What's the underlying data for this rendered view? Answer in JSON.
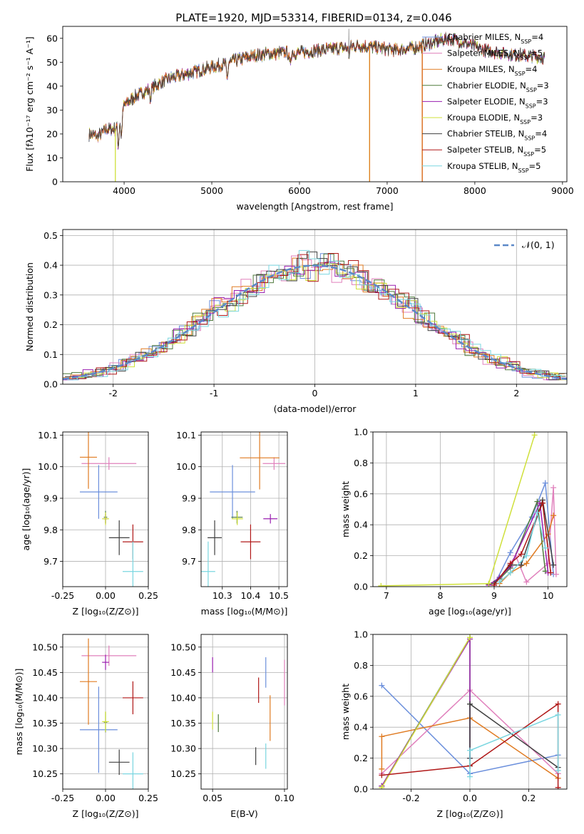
{
  "title": "PLATE=1920, MJD=53314, FIBERID=0134, z=0.046",
  "colors": {
    "Chabrier MILES": "#6b8fdc",
    "Salpeter MILES": "#e080bc",
    "Kroupa MILES": "#e07b22",
    "Chabrier ELODIE": "#4f7a3c",
    "Salpeter ELODIE": "#9a1fb0",
    "Kroupa ELODIE": "#cfe03a",
    "Chabrier STELIB": "#404040",
    "Salpeter STELIB": "#b01818",
    "Kroupa STELIB": "#7ad6e0"
  },
  "chart_data": [
    {
      "id": "spectrum",
      "type": "line",
      "xlabel": "wavelength [Angstrom, rest frame]",
      "ylabel": "Flux [fλ10⁻¹⁷ erg cm⁻² s⁻¹ A⁻¹]",
      "xlim": [
        3300,
        9050
      ],
      "ylim": [
        0,
        65
      ],
      "xticks": [
        4000,
        5000,
        6000,
        7000,
        8000,
        9000
      ],
      "yticks": [
        0,
        10,
        20,
        30,
        40,
        50,
        60
      ],
      "grid": false,
      "legend_position": "right",
      "legend": [
        {
          "key": "Chabrier MILES",
          "label": "Chabrier MILES, N_SSP=4"
        },
        {
          "key": "Salpeter MILES",
          "label": "Salpeter MILES, N_SSP=5"
        },
        {
          "key": "Kroupa MILES",
          "label": "Kroupa MILES, N_SSP=4"
        },
        {
          "key": "Chabrier ELODIE",
          "label": "Chabrier ELODIE, N_SSP=3"
        },
        {
          "key": "Salpeter ELODIE",
          "label": "Salpeter ELODIE, N_SSP=3"
        },
        {
          "key": "Kroupa ELODIE",
          "label": "Kroupa ELODIE, N_SSP=3"
        },
        {
          "key": "Chabrier STELIB",
          "label": "Chabrier STELIB, N_SSP=4"
        },
        {
          "key": "Salpeter STELIB",
          "label": "Salpeter STELIB, N_SSP=5"
        },
        {
          "key": "Kroupa STELIB",
          "label": "Kroupa STELIB, N_SSP=5"
        }
      ],
      "continuum": {
        "x": [
          3600,
          3700,
          3800,
          3900,
          4000,
          4100,
          4300,
          4500,
          4700,
          5000,
          5200,
          5500,
          5800,
          6000,
          6200,
          6500,
          6700,
          6900,
          7100,
          7300,
          7500,
          7700,
          7900,
          8100,
          8300,
          8500,
          8800
        ],
        "y": [
          20,
          19,
          22,
          22,
          32,
          35,
          39,
          43,
          45,
          48,
          50,
          53,
          54,
          54,
          55,
          56,
          57,
          56,
          55,
          56,
          58,
          60,
          58,
          55,
          54,
          53,
          52
        ]
      },
      "absorption_features": [
        {
          "x": 3934,
          "depth": 10
        },
        {
          "x": 3968,
          "depth": 10
        },
        {
          "x": 4300,
          "depth": 4
        },
        {
          "x": 5175,
          "depth": 7
        },
        {
          "x": 5890,
          "depth": 5
        },
        {
          "x": 6563,
          "depth": 3
        }
      ],
      "drop_lines": [
        {
          "key": "Kroupa ELODIE",
          "x": 3900
        },
        {
          "key": "Kroupa ELODIE",
          "x": 6800
        },
        {
          "key": "Kroupa MILES",
          "x": 6800
        },
        {
          "key": "Salpeter STELIB",
          "x": 7400
        },
        {
          "key": "Kroupa MILES",
          "x": 7400
        }
      ]
    },
    {
      "id": "residuals",
      "type": "step",
      "xlabel": "(data-model)/error",
      "ylabel": "Normed distribution",
      "xlim": [
        -2.5,
        2.5
      ],
      "ylim": [
        0,
        0.52
      ],
      "xticks": [
        -2,
        -1,
        0,
        1,
        2
      ],
      "yticks": [
        0.0,
        0.1,
        0.2,
        0.3,
        0.4,
        0.5
      ],
      "grid": true,
      "legend_position": "top-right",
      "reference_label": "𝒩(0, 1)",
      "reference": "normal(0,1)",
      "bin_width": 0.1
    },
    {
      "id": "age_vs_Z",
      "type": "errorbar",
      "xlabel": "Z [log₁₀(Z/Z⊙)]",
      "ylabel": "age  [log₁₀(age/yr)]",
      "xlim": [
        -0.25,
        0.25
      ],
      "ylim": [
        9.62,
        10.11
      ],
      "xticks": [
        -0.25,
        0.0,
        0.25
      ],
      "yticks": [
        9.7,
        9.8,
        9.9,
        10.0,
        10.1
      ],
      "grid": true,
      "points": [
        {
          "key": "Chabrier MILES",
          "x": -0.04,
          "xerr": 0.11,
          "y": 9.92,
          "yerr": 0.17
        },
        {
          "key": "Salpeter MILES",
          "x": 0.02,
          "xerr": 0.16,
          "y": 10.01,
          "yerr": 0.04
        },
        {
          "key": "Kroupa MILES",
          "x": -0.1,
          "xerr": 0.05,
          "y": 10.03,
          "yerr": 0.2
        },
        {
          "key": "Chabrier ELODIE",
          "x": 0.0,
          "xerr": 0.01,
          "y": 9.84,
          "yerr": 0.04
        },
        {
          "key": "Salpeter ELODIE",
          "x": 0.0,
          "xerr": 0.01,
          "y": 9.835,
          "yerr": 0.03
        },
        {
          "key": "Kroupa ELODIE",
          "x": 0.0,
          "xerr": 0.02,
          "y": 9.835,
          "yerr": 0.04
        },
        {
          "key": "Chabrier STELIB",
          "x": 0.08,
          "xerr": 0.06,
          "y": 9.775,
          "yerr": 0.11
        },
        {
          "key": "Salpeter STELIB",
          "x": 0.16,
          "xerr": 0.06,
          "y": 9.762,
          "yerr": 0.11
        },
        {
          "key": "Kroupa STELIB",
          "x": 0.16,
          "xerr": 0.06,
          "y": 9.668,
          "yerr": 0.19
        }
      ]
    },
    {
      "id": "age_vs_mass",
      "type": "errorbar",
      "xlabel": "mass [log₁₀(M/M⊙)]",
      "ylabel": "",
      "xlim": [
        10.225,
        10.53
      ],
      "ylim": [
        9.62,
        10.11
      ],
      "xticks": [
        10.3,
        10.4,
        10.5
      ],
      "yticks": [
        9.7,
        9.8,
        9.9,
        10.0,
        10.1
      ],
      "grid": true,
      "points": [
        {
          "key": "Chabrier MILES",
          "x": 10.336,
          "xerr": 0.08,
          "y": 9.92,
          "yerr": 0.17
        },
        {
          "key": "Salpeter MILES",
          "x": 10.483,
          "xerr": 0.04,
          "y": 10.01,
          "yerr": 0.04
        },
        {
          "key": "Kroupa MILES",
          "x": 10.432,
          "xerr": 0.07,
          "y": 10.028,
          "yerr": 0.2
        },
        {
          "key": "Chabrier ELODIE",
          "x": 10.352,
          "xerr": 0.02,
          "y": 9.84,
          "yerr": 0.04
        },
        {
          "key": "Salpeter ELODIE",
          "x": 10.47,
          "xerr": 0.025,
          "y": 9.835,
          "yerr": 0.03
        },
        {
          "key": "Kroupa ELODIE",
          "x": 10.353,
          "xerr": 0.02,
          "y": 9.835,
          "yerr": 0.04
        },
        {
          "key": "Chabrier STELIB",
          "x": 10.273,
          "xerr": 0.025,
          "y": 9.775,
          "yerr": 0.11
        },
        {
          "key": "Salpeter STELIB",
          "x": 10.4,
          "xerr": 0.035,
          "y": 9.762,
          "yerr": 0.11
        },
        {
          "key": "Kroupa STELIB",
          "x": 10.25,
          "xerr": 0.025,
          "y": 9.668,
          "yerr": 0.19
        }
      ]
    },
    {
      "id": "weights_vs_age",
      "type": "line",
      "xlabel": "age  [log₁₀(age/yr)]",
      "ylabel": "mass weight",
      "xlim": [
        6.75,
        10.35
      ],
      "ylim": [
        0,
        1.0
      ],
      "xticks": [
        7,
        8,
        9,
        10
      ],
      "yticks": [
        0.0,
        0.2,
        0.4,
        0.6,
        0.8,
        1.0
      ],
      "grid": true,
      "series": [
        {
          "key": "Chabrier MILES",
          "x": [
            9.0,
            9.3,
            9.7,
            9.95,
            10.1
          ],
          "y": [
            0.01,
            0.22,
            0.45,
            0.67,
            0.08
          ]
        },
        {
          "key": "Salpeter MILES",
          "x": [
            9.1,
            9.4,
            9.6,
            10.0,
            10.1,
            10.15
          ],
          "y": [
            0.05,
            0.2,
            0.03,
            0.15,
            0.64,
            0.08
          ]
        },
        {
          "key": "Kroupa MILES",
          "x": [
            9.1,
            9.3,
            9.6,
            10.0,
            10.1
          ],
          "y": [
            0.02,
            0.09,
            0.15,
            0.34,
            0.46
          ]
        },
        {
          "key": "Chabrier ELODIE",
          "x": [
            8.9,
            9.1,
            9.3,
            9.8,
            9.95
          ],
          "y": [
            0.015,
            0.05,
            0.12,
            0.55,
            0.1
          ]
        },
        {
          "key": "Salpeter ELODIE",
          "x": [
            8.9,
            9.1,
            9.3,
            9.85,
            10.0
          ],
          "y": [
            0.01,
            0.06,
            0.13,
            0.54,
            0.09
          ]
        },
        {
          "key": "Kroupa ELODIE",
          "x": [
            6.9,
            8.9,
            9.75
          ],
          "y": [
            0.005,
            0.02,
            0.98
          ]
        },
        {
          "key": "Chabrier STELIB",
          "x": [
            9.0,
            9.3,
            9.5,
            9.9,
            10.1
          ],
          "y": [
            0.02,
            0.14,
            0.14,
            0.56,
            0.14
          ]
        },
        {
          "key": "Salpeter STELIB",
          "x": [
            9.0,
            9.3,
            9.5,
            9.9,
            10.05
          ],
          "y": [
            0.01,
            0.15,
            0.21,
            0.54,
            0.09
          ]
        },
        {
          "key": "Kroupa STELIB",
          "x": [
            9.1,
            9.3,
            9.6,
            9.8,
            9.95
          ],
          "y": [
            0.03,
            0.09,
            0.2,
            0.48,
            0.25
          ]
        }
      ]
    },
    {
      "id": "mass_vs_Z",
      "type": "errorbar",
      "xlabel": "Z [log₁₀(Z/Z⊙)]",
      "ylabel": "mass [log₁₀(M/M⊙)]",
      "xlim": [
        -0.25,
        0.25
      ],
      "ylim": [
        10.22,
        10.525
      ],
      "xticks": [
        -0.25,
        0.0,
        0.25
      ],
      "yticks": [
        10.25,
        10.3,
        10.35,
        10.4,
        10.45,
        10.5
      ],
      "grid": true,
      "points": [
        {
          "key": "Chabrier MILES",
          "x": -0.04,
          "xerr": 0.11,
          "y": 10.337,
          "yerr": 0.17
        },
        {
          "key": "Salpeter MILES",
          "x": 0.02,
          "xerr": 0.16,
          "y": 10.483,
          "yerr": 0.04
        },
        {
          "key": "Kroupa MILES",
          "x": -0.1,
          "xerr": 0.05,
          "y": 10.432,
          "yerr": 0.17
        },
        {
          "key": "Chabrier ELODIE",
          "x": 0.0,
          "xerr": 0.01,
          "y": 10.352,
          "yerr": 0.04
        },
        {
          "key": "Salpeter ELODIE",
          "x": 0.0,
          "xerr": 0.02,
          "y": 10.47,
          "yerr": 0.03
        },
        {
          "key": "Kroupa ELODIE",
          "x": 0.0,
          "xerr": 0.02,
          "y": 10.353,
          "yerr": 0.04
        },
        {
          "key": "Chabrier STELIB",
          "x": 0.08,
          "xerr": 0.06,
          "y": 10.273,
          "yerr": 0.05
        },
        {
          "key": "Salpeter STELIB",
          "x": 0.16,
          "xerr": 0.06,
          "y": 10.4,
          "yerr": 0.065
        },
        {
          "key": "Kroupa STELIB",
          "x": 0.16,
          "xerr": 0.06,
          "y": 10.25,
          "yerr": 0.085
        }
      ]
    },
    {
      "id": "mass_vs_ebv",
      "type": "errorbar",
      "xlabel": "E(B-V)",
      "ylabel": "",
      "xlim": [
        0.042,
        0.102
      ],
      "ylim": [
        10.22,
        10.525
      ],
      "xticks": [
        0.05,
        0.1
      ],
      "yticks": [
        10.25,
        10.3,
        10.35,
        10.4,
        10.45,
        10.5
      ],
      "grid": true,
      "points": [
        {
          "key": "Chabrier MILES",
          "x": 0.087,
          "xerr": 0,
          "y": 10.45,
          "yerr": 0.06
        },
        {
          "key": "Salpeter MILES",
          "x": 0.1,
          "xerr": 0,
          "y": 10.43,
          "yerr": 0.09
        },
        {
          "key": "Kroupa MILES",
          "x": 0.09,
          "xerr": 0,
          "y": 10.36,
          "yerr": 0.09
        },
        {
          "key": "Chabrier ELODIE",
          "x": 0.054,
          "xerr": 0,
          "y": 10.35,
          "yerr": 0.035
        },
        {
          "key": "Salpeter ELODIE",
          "x": 0.05,
          "xerr": 0,
          "y": 10.465,
          "yerr": 0.03
        },
        {
          "key": "Kroupa ELODIE",
          "x": 0.05,
          "xerr": 0,
          "y": 10.355,
          "yerr": 0.035
        },
        {
          "key": "Chabrier STELIB",
          "x": 0.08,
          "xerr": 0,
          "y": 10.285,
          "yerr": 0.035
        },
        {
          "key": "Salpeter STELIB",
          "x": 0.082,
          "xerr": 0,
          "y": 10.415,
          "yerr": 0.05
        },
        {
          "key": "Kroupa STELIB",
          "x": 0.087,
          "xerr": 0,
          "y": 10.285,
          "yerr": 0.05
        }
      ]
    },
    {
      "id": "weights_vs_Z",
      "type": "line",
      "xlabel": "Z [log₁₀(Z/Z⊙)]",
      "ylabel": "mass weight",
      "xlim": [
        -0.33,
        0.33
      ],
      "ylim": [
        0,
        1.0
      ],
      "xticks": [
        -0.2,
        0.0,
        0.2
      ],
      "yticks": [
        0.0,
        0.2,
        0.4,
        0.6,
        0.8,
        1.0
      ],
      "grid": true,
      "series": [
        {
          "key": "Chabrier MILES",
          "x": [
            -0.3,
            0.0,
            0.3
          ],
          "y": [
            0.67,
            0.1,
            0.22
          ]
        },
        {
          "key": "Salpeter MILES",
          "x": [
            -0.3,
            0.0,
            0.3
          ],
          "y": [
            0.1,
            0.64,
            0.1
          ]
        },
        {
          "key": "Kroupa MILES",
          "x": [
            -0.3,
            -0.3,
            0.0,
            0.3
          ],
          "y": [
            0.13,
            0.34,
            0.46,
            0.07
          ]
        },
        {
          "key": "Chabrier ELODIE",
          "x": [
            -0.3,
            0.0,
            0.0,
            0.0
          ],
          "y": [
            0.02,
            0.98,
            0.15,
            0.55
          ]
        },
        {
          "key": "Salpeter ELODIE",
          "x": [
            -0.3,
            0.0,
            0.0
          ],
          "y": [
            0.02,
            0.97,
            0.2
          ]
        },
        {
          "key": "Kroupa ELODIE",
          "x": [
            -0.3,
            0.0
          ],
          "y": [
            0.01,
            0.98
          ]
        },
        {
          "key": "Chabrier STELIB",
          "x": [
            0.0,
            0.0,
            0.3
          ],
          "y": [
            0.2,
            0.55,
            0.14
          ]
        },
        {
          "key": "Salpeter STELIB",
          "x": [
            -0.3,
            0.0,
            0.3,
            0.3
          ],
          "y": [
            0.09,
            0.15,
            0.55,
            0.01
          ]
        },
        {
          "key": "Kroupa STELIB",
          "x": [
            0.0,
            0.0,
            0.3,
            0.3
          ],
          "y": [
            0.08,
            0.25,
            0.48,
            0.12
          ]
        }
      ]
    }
  ]
}
